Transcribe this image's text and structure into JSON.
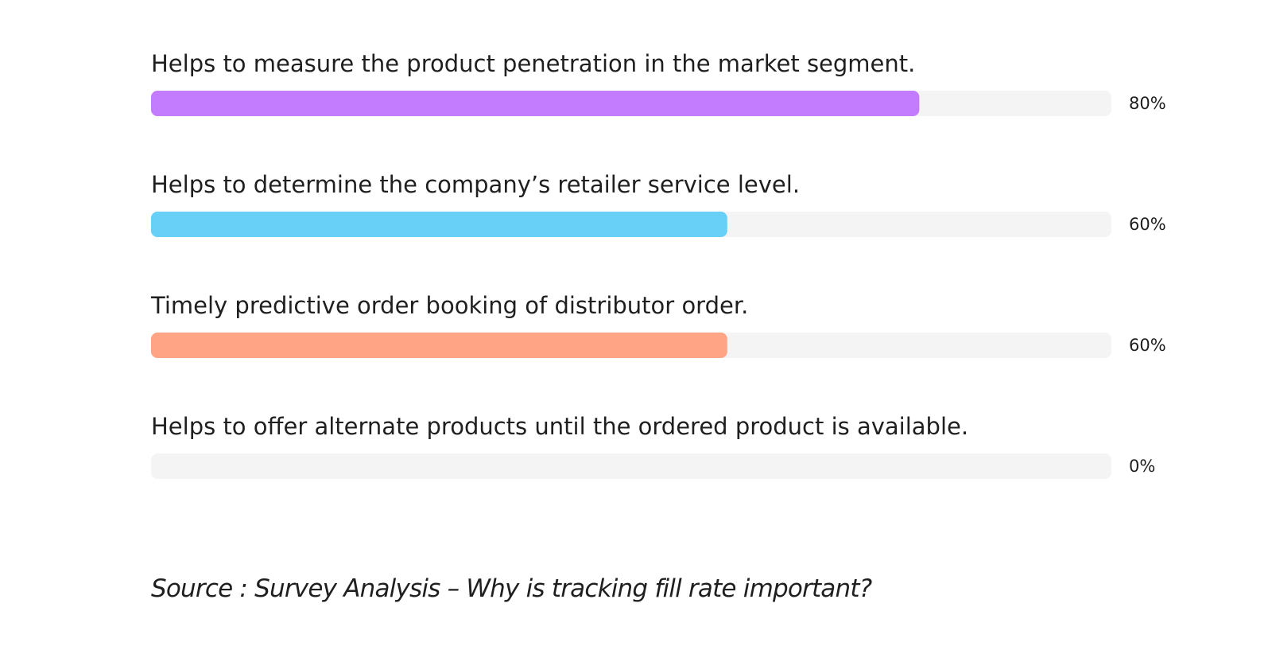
{
  "chart_data": {
    "type": "bar",
    "orientation": "horizontal",
    "categories": [
      "Helps to measure the product penetration in the market segment.",
      "Helps to determine the company’s retailer service level.",
      "Timely predictive order booking of distributor order.",
      "Helps to offer alternate products until the ordered product is available."
    ],
    "values": [
      80,
      60,
      60,
      0
    ],
    "value_labels": [
      "80%",
      "60%",
      "60%",
      "0%"
    ],
    "colors": [
      "#c47cff",
      "#68d0f7",
      "#ffa585",
      "#c47cff"
    ],
    "track_color": "#f4f4f4",
    "xlim": [
      0,
      100
    ],
    "grid": false,
    "legend": "none"
  },
  "source_note": "Source : Survey Analysis – Why is tracking fill rate important?"
}
